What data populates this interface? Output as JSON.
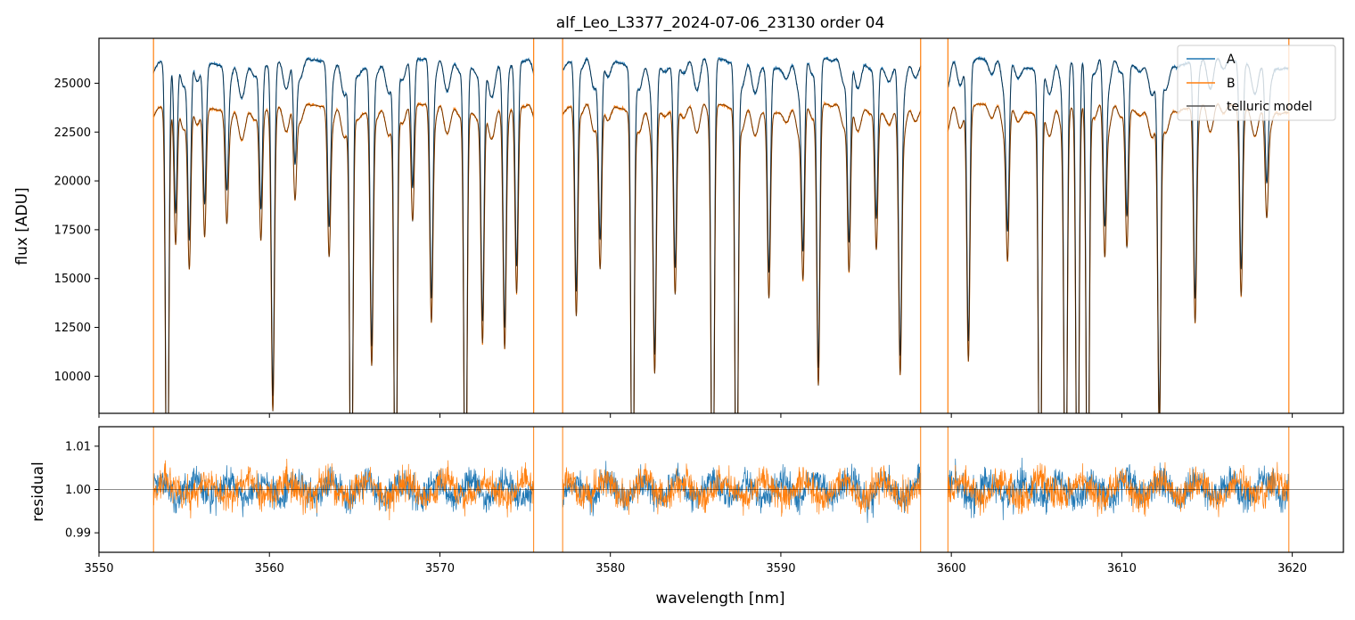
{
  "chart_data": [
    {
      "type": "line",
      "panel": "spectrum",
      "title": "alf_Leo_L3377_2024-07-06_23130  order 04",
      "xlabel": "",
      "ylabel": "flux [ADU]",
      "xlim": [
        3550,
        3623
      ],
      "ylim": [
        8100,
        27300
      ],
      "x_ticks": [
        3550,
        3560,
        3570,
        3580,
        3590,
        3600,
        3610,
        3620
      ],
      "x_tick_labels_shown": false,
      "y_ticks": [
        10000,
        12500,
        15000,
        17500,
        20000,
        22500,
        25000
      ],
      "y_tick_labels": [
        "10000",
        "12500",
        "15000",
        "17500",
        "20000",
        "22500",
        "25000"
      ],
      "grid": false,
      "legend_placement": "top-right",
      "x_range_data": [
        3553.2,
        3619.8
      ],
      "segments": [
        [
          3553.2,
          3575.5
        ],
        [
          3577.2,
          3598.2
        ],
        [
          3599.8,
          3619.8
        ]
      ],
      "continuum": {
        "A": 26000,
        "B": 23700
      },
      "absorption_lines": [
        {
          "x": 3554.0,
          "depth": 1.0
        },
        {
          "x": 3554.5,
          "depth": 0.3
        },
        {
          "x": 3555.3,
          "depth": 0.35
        },
        {
          "x": 3556.2,
          "depth": 0.28
        },
        {
          "x": 3557.5,
          "depth": 0.22
        },
        {
          "x": 3559.5,
          "depth": 0.28
        },
        {
          "x": 3560.2,
          "depth": 0.65
        },
        {
          "x": 3561.5,
          "depth": 0.2
        },
        {
          "x": 3563.5,
          "depth": 0.3
        },
        {
          "x": 3564.8,
          "depth": 1.0
        },
        {
          "x": 3566.0,
          "depth": 0.55
        },
        {
          "x": 3567.4,
          "depth": 1.0
        },
        {
          "x": 3568.4,
          "depth": 0.25
        },
        {
          "x": 3569.5,
          "depth": 0.45
        },
        {
          "x": 3571.5,
          "depth": 1.0
        },
        {
          "x": 3572.5,
          "depth": 0.5
        },
        {
          "x": 3573.8,
          "depth": 0.5
        },
        {
          "x": 3574.5,
          "depth": 0.4
        },
        {
          "x": 3578.0,
          "depth": 0.45
        },
        {
          "x": 3579.4,
          "depth": 0.35
        },
        {
          "x": 3581.3,
          "depth": 1.0
        },
        {
          "x": 3582.6,
          "depth": 0.55
        },
        {
          "x": 3583.8,
          "depth": 0.4
        },
        {
          "x": 3586.0,
          "depth": 1.0
        },
        {
          "x": 3587.4,
          "depth": 1.0
        },
        {
          "x": 3589.3,
          "depth": 0.4
        },
        {
          "x": 3591.3,
          "depth": 0.35
        },
        {
          "x": 3592.2,
          "depth": 0.6
        },
        {
          "x": 3594.0,
          "depth": 0.35
        },
        {
          "x": 3595.6,
          "depth": 0.3
        },
        {
          "x": 3597.0,
          "depth": 0.55
        },
        {
          "x": 3601.0,
          "depth": 0.55
        },
        {
          "x": 3603.3,
          "depth": 0.3
        },
        {
          "x": 3605.2,
          "depth": 1.0
        },
        {
          "x": 3606.7,
          "depth": 1.0
        },
        {
          "x": 3607.4,
          "depth": 1.0
        },
        {
          "x": 3608.0,
          "depth": 1.0
        },
        {
          "x": 3609.0,
          "depth": 0.3
        },
        {
          "x": 3610.3,
          "depth": 0.3
        },
        {
          "x": 3612.2,
          "depth": 0.7
        },
        {
          "x": 3614.3,
          "depth": 0.45
        },
        {
          "x": 3617.0,
          "depth": 0.4
        },
        {
          "x": 3618.5,
          "depth": 0.2
        }
      ],
      "series": [
        {
          "name": "A",
          "color": "#1f77b4",
          "linewidth": 1.3
        },
        {
          "name": "B",
          "color": "#ff7f0e",
          "linewidth": 1.3
        },
        {
          "name": "telluric model",
          "color": "#000000",
          "opacity": 0.6,
          "linewidth": 1.0
        }
      ]
    },
    {
      "type": "line",
      "panel": "residual",
      "title": "",
      "xlabel": "wavelength [nm]",
      "ylabel": "residual",
      "xlim": [
        3550,
        3623
      ],
      "ylim": [
        0.9855,
        1.0145
      ],
      "x_ticks": [
        3550,
        3560,
        3570,
        3580,
        3590,
        3600,
        3610,
        3620
      ],
      "x_tick_labels": [
        "3550",
        "3560",
        "3570",
        "3580",
        "3590",
        "3600",
        "3610",
        "3620"
      ],
      "y_ticks": [
        0.99,
        1.0,
        1.01
      ],
      "y_tick_labels": [
        "0.99",
        "1.00",
        "1.01"
      ],
      "reference_line": 1.0,
      "grid": false,
      "series": [
        {
          "name": "A",
          "color": "#1f77b4",
          "mean": 1.0,
          "spread": 0.004
        },
        {
          "name": "B",
          "color": "#ff7f0e",
          "mean": 1.0,
          "spread": 0.004
        }
      ]
    }
  ]
}
